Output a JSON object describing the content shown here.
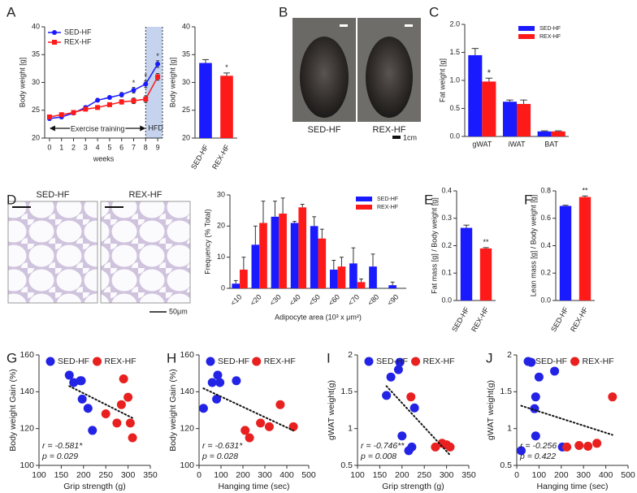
{
  "chart_data": [
    {
      "type": "line",
      "panel": "A",
      "xlabel": "weeks",
      "ylabel": "Body weight [g]",
      "x": [
        0,
        1,
        2,
        3,
        4,
        5,
        6,
        7,
        8,
        9
      ],
      "xlim": [
        -0.4,
        9.4
      ],
      "xticks": [
        0,
        1,
        2,
        3,
        4,
        5,
        6,
        7,
        8,
        9
      ],
      "ylim": [
        20,
        40
      ],
      "yticks": [
        20,
        25,
        30,
        35,
        40
      ],
      "legend": "upper left",
      "annotations": [
        "Exercise training",
        "HFD"
      ],
      "shade": [
        8,
        9.4
      ],
      "stars": [
        null,
        null,
        null,
        null,
        null,
        null,
        null,
        "*",
        "*",
        "*"
      ],
      "series": [
        {
          "name": "SED-HF",
          "color": "#1a1aff",
          "marker": "circle",
          "values": [
            23.5,
            23.8,
            24.5,
            25.5,
            26.8,
            27.3,
            27.8,
            28.6,
            29.7,
            33.3
          ],
          "errors": [
            0.3,
            0.3,
            0.3,
            0.3,
            0.3,
            0.3,
            0.4,
            0.5,
            0.6,
            0.6
          ]
        },
        {
          "name": "REX-HF",
          "color": "#ff1a1a",
          "marker": "square",
          "values": [
            23.8,
            24.2,
            24.6,
            25.2,
            25.5,
            26.0,
            26.5,
            26.7,
            27.0,
            31.0
          ],
          "errors": [
            0.3,
            0.3,
            0.3,
            0.3,
            0.3,
            0.3,
            0.4,
            0.5,
            0.6,
            0.6
          ]
        }
      ]
    },
    {
      "type": "bar",
      "ylabel": "Body weight [g]",
      "categories": [
        "SED-HF",
        "REX-HF"
      ],
      "values": [
        33.5,
        31.2
      ],
      "errors": [
        0.6,
        0.5
      ],
      "colors": [
        "#1a1aff",
        "#ff1a1a"
      ],
      "stars": [
        null,
        "*"
      ],
      "ylim": [
        20,
        40
      ],
      "yticks": [
        20,
        25,
        30,
        35,
        40
      ]
    },
    {
      "type": "bar",
      "panel": "C",
      "ylabel": "Fat weight [g]",
      "categories": [
        "gWAT",
        "iWAT",
        "BAT"
      ],
      "ylim": [
        0,
        2
      ],
      "yticks": [
        {
          "value": 0,
          "label": "0.0"
        },
        0.5,
        {
          "value": 1,
          "label": "1.0"
        },
        1.5,
        {
          "value": 2,
          "label": "2.0"
        }
      ],
      "legend": "upper right",
      "series": [
        {
          "name": "SED-HF",
          "color": "#1a1aff",
          "values": [
            1.45,
            0.62,
            0.09
          ],
          "errors": [
            0.12,
            0.03,
            0.01
          ]
        },
        {
          "name": "REX-HF",
          "color": "#ff1a1a",
          "values": [
            0.98,
            0.58,
            0.09
          ],
          "errors": [
            0.06,
            0.07,
            0.01
          ],
          "stars": [
            "*",
            null,
            null
          ]
        }
      ]
    },
    {
      "type": "bar",
      "panel": "D",
      "ylabel": "Frequency (% Total)",
      "xlabel": "Adipocyte area (10³ x μm²)",
      "categories": [
        "<10",
        "<20",
        "<30",
        "<40",
        "<50",
        "<60",
        "<70",
        "<80",
        "<90"
      ],
      "ylim": [
        0,
        30
      ],
      "yticks": [
        0,
        10,
        20,
        30
      ],
      "legend": "upper right",
      "series": [
        {
          "name": "SED-HF",
          "color": "#1a1aff",
          "values": [
            1.5,
            14,
            23,
            21,
            20,
            6,
            8,
            7,
            1
          ],
          "errors": [
            1,
            6,
            5,
            0.5,
            3,
            3,
            5,
            4,
            1
          ]
        },
        {
          "name": "REX-HF",
          "color": "#ff1a1a",
          "values": [
            6,
            21,
            24,
            26,
            16,
            7,
            2,
            0,
            0
          ],
          "errors": [
            4,
            7,
            5,
            1,
            3,
            3,
            1,
            0,
            0
          ]
        }
      ]
    },
    {
      "type": "bar",
      "panel": "E",
      "ylabel": "Fat mass [g] / Body weight [g]",
      "categories": [
        "SED-HF",
        "REX-HF"
      ],
      "values": [
        0.265,
        0.19
      ],
      "errors": [
        0.01,
        0.003
      ],
      "colors": [
        "#1a1aff",
        "#ff1a1a"
      ],
      "stars": [
        null,
        "**"
      ],
      "ylim": [
        0,
        0.4
      ],
      "yticks": [
        {
          "value": 0,
          "label": "0.0"
        },
        0.1,
        0.2,
        0.3,
        0.4
      ]
    },
    {
      "type": "bar",
      "panel": "F",
      "ylabel": "Lean mass [g] / Body weight [g]",
      "categories": [
        "SED-HF",
        "REX-HF"
      ],
      "values": [
        0.69,
        0.755
      ],
      "errors": [
        0.005,
        0.008
      ],
      "colors": [
        "#1a1aff",
        "#ff1a1a"
      ],
      "stars": [
        null,
        "**"
      ],
      "ylim": [
        0,
        0.8
      ],
      "yticks": [
        {
          "value": 0,
          "label": "0.0"
        },
        0.2,
        0.4,
        0.6,
        0.8
      ]
    },
    {
      "type": "scatter",
      "panel": "G",
      "xlabel": "Grip strength (g)",
      "ylabel": "Body weight Gain (%)",
      "xlim": [
        100,
        350
      ],
      "xticks": [
        100,
        150,
        200,
        250,
        300,
        350
      ],
      "ylim": [
        100,
        160
      ],
      "yticks": [
        100,
        120,
        140,
        160
      ],
      "annotations": [
        "r = -0.581*",
        "p = 0.029"
      ],
      "legend": "top",
      "series": [
        {
          "name": "SED-HF",
          "color": "#2323e6",
          "x": [
            168,
            178,
            193,
            195,
            197,
            210,
            220
          ],
          "values": [
            149,
            145,
            146,
            146,
            136,
            131,
            119
          ]
        },
        {
          "name": "REX-HF",
          "color": "#e8201f",
          "x": [
            250,
            275,
            285,
            290,
            300,
            305,
            310
          ],
          "values": [
            128,
            123,
            133,
            147,
            137,
            123,
            115
          ]
        }
      ]
    },
    {
      "type": "scatter",
      "panel": "H",
      "xlabel": "Hanging time (sec)",
      "ylabel": "Body weight Gain (%)",
      "xlim": [
        0,
        500
      ],
      "xticks": [
        0,
        100,
        200,
        300,
        400,
        500
      ],
      "ylim": [
        100,
        160
      ],
      "yticks": [
        100,
        120,
        140,
        160
      ],
      "annotations": [
        "r = -0.631*",
        "p = 0.028"
      ],
      "legend": "top",
      "series": [
        {
          "name": "SED-HF",
          "color": "#2323e6",
          "x": [
            20,
            60,
            80,
            85,
            95,
            170
          ],
          "values": [
            131,
            145,
            136,
            149,
            145,
            146
          ]
        },
        {
          "name": "REX-HF",
          "color": "#e8201f",
          "x": [
            210,
            230,
            280,
            320,
            370,
            430
          ],
          "values": [
            119,
            115,
            123,
            121,
            133,
            121
          ]
        }
      ]
    },
    {
      "type": "scatter",
      "panel": "I",
      "xlabel": "Grip strength (g)",
      "ylabel": "gWAT weight(g)",
      "xlim": [
        100,
        350
      ],
      "xticks": [
        100,
        150,
        200,
        250,
        300,
        350
      ],
      "ylim": [
        0.5,
        2
      ],
      "yticks": [
        0.5,
        1,
        1.5,
        2
      ],
      "annotations": [
        "r = -0.746**",
        "p = 0.008"
      ],
      "legend": "top",
      "series": [
        {
          "name": "SED-HF",
          "color": "#2323e6",
          "x": [
            165,
            175,
            192,
            195,
            200,
            215,
            222,
            228
          ],
          "values": [
            1.45,
            1.7,
            1.8,
            1.9,
            0.9,
            0.7,
            0.75,
            1.28
          ]
        },
        {
          "name": "REX-HF",
          "color": "#e8201f",
          "x": [
            220,
            275,
            290,
            300,
            308
          ],
          "values": [
            1.43,
            0.75,
            0.8,
            0.78,
            0.75
          ]
        }
      ]
    },
    {
      "type": "scatter",
      "panel": "J",
      "xlabel": "Hanging time (sec)",
      "ylabel": "gWAT weight(g)",
      "xlim": [
        0,
        500
      ],
      "xticks": [
        0,
        100,
        200,
        300,
        400,
        500
      ],
      "ylim": [
        0.5,
        2
      ],
      "yticks": [
        0.5,
        1,
        1.5,
        2
      ],
      "annotations": [
        "r = -0.256",
        "p = 0.422"
      ],
      "legend": "top",
      "series": [
        {
          "name": "SED-HF",
          "color": "#2323e6",
          "x": [
            20,
            65,
            80,
            85,
            85,
            100,
            170,
            205
          ],
          "values": [
            0.7,
            1.9,
            1.27,
            1.43,
            0.9,
            1.7,
            1.78,
            0.75
          ]
        },
        {
          "name": "REX-HF",
          "color": "#e8201f",
          "x": [
            225,
            280,
            320,
            360,
            430
          ],
          "values": [
            0.75,
            0.77,
            0.76,
            0.8,
            1.43
          ]
        }
      ]
    }
  ],
  "photos": {
    "letter": "B",
    "labels": [
      "SED-HF",
      "REX-HF"
    ],
    "scale": "1cm"
  },
  "histology": {
    "labels": [
      "SED-HF",
      "REX-HF"
    ],
    "scale": "50μm"
  }
}
